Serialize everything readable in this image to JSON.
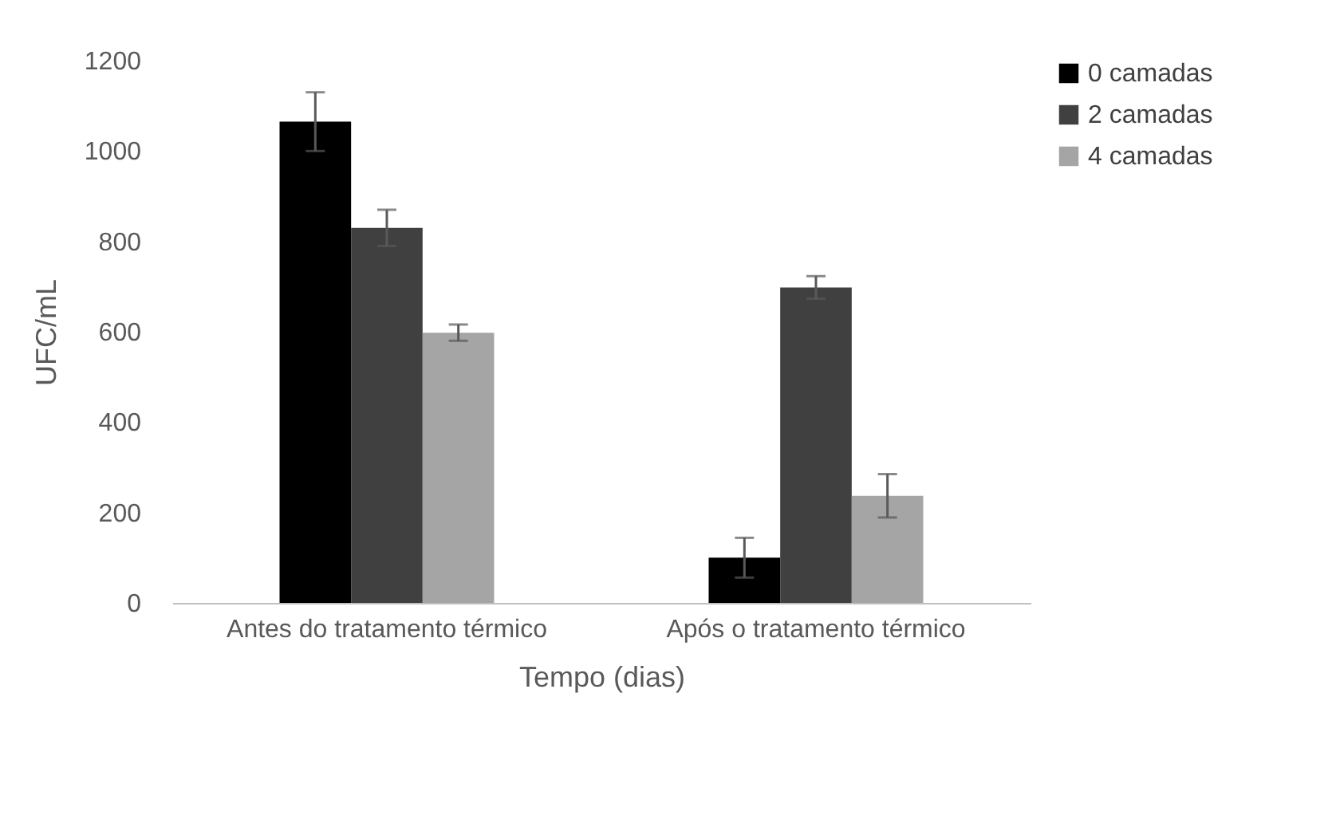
{
  "chart_data": {
    "type": "bar",
    "xlabel": "Tempo (dias)",
    "ylabel": "UFC/mL",
    "categories": [
      "Antes do tratamento térmico",
      "Após o tratamento térmico"
    ],
    "series": [
      {
        "name": "0 camadas",
        "color": "#000000",
        "values": [
          1065,
          100
        ],
        "errors": [
          65,
          44
        ]
      },
      {
        "name": "2 camadas",
        "color": "#404040",
        "values": [
          830,
          698
        ],
        "errors": [
          40,
          25
        ]
      },
      {
        "name": "4 camadas",
        "color": "#a5a5a5",
        "values": [
          598,
          237
        ],
        "errors": [
          18,
          48
        ]
      }
    ],
    "ylim": [
      0,
      1200
    ],
    "yticks": [
      0,
      200,
      400,
      600,
      800,
      1000,
      1200
    ],
    "grid": false,
    "legend": "top right"
  }
}
